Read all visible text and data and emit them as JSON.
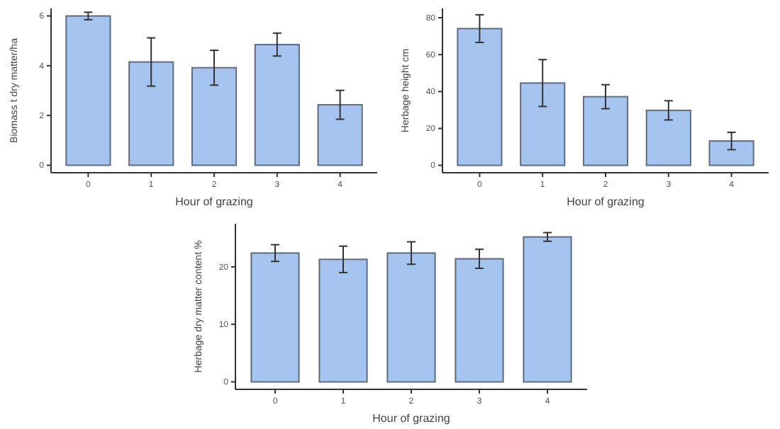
{
  "chart_data": [
    {
      "type": "bar",
      "xlabel": "Hour of grazing",
      "ylabel": "Biomass t dry matter/ha",
      "categories": [
        "0",
        "1",
        "2",
        "3",
        "4"
      ],
      "values": [
        6.0,
        4.15,
        3.92,
        4.85,
        2.43
      ],
      "errors": [
        0.15,
        0.97,
        0.7,
        0.46,
        0.58
      ],
      "color": "#a6c4f0",
      "ylim": [
        -0.3,
        6.3
      ],
      "yticks": [
        0,
        2,
        4,
        6
      ],
      "grid": false
    },
    {
      "type": "bar",
      "xlabel": "Hour of grazing",
      "ylabel": "Herbage height cm",
      "categories": [
        "0",
        "1",
        "2",
        "3",
        "4"
      ],
      "values": [
        74.1,
        44.6,
        37.2,
        29.8,
        13.2
      ],
      "errors": [
        7.5,
        12.7,
        6.5,
        5.2,
        4.7
      ],
      "color": "#a6c4f0",
      "ylim": [
        -4,
        85
      ],
      "yticks": [
        0,
        20,
        40,
        60,
        80
      ],
      "grid": false
    },
    {
      "type": "bar",
      "xlabel": "Hour of grazing",
      "ylabel": "Herbage dry matter content %",
      "categories": [
        "0",
        "1",
        "2",
        "3",
        "4"
      ],
      "values": [
        22.4,
        21.3,
        22.4,
        21.4,
        25.2
      ],
      "errors": [
        1.45,
        2.3,
        1.95,
        1.65,
        0.75
      ],
      "color": "#a6c4f0",
      "ylim": [
        -1.3,
        27.5
      ],
      "yticks": [
        0,
        10,
        20
      ],
      "grid": false
    }
  ]
}
